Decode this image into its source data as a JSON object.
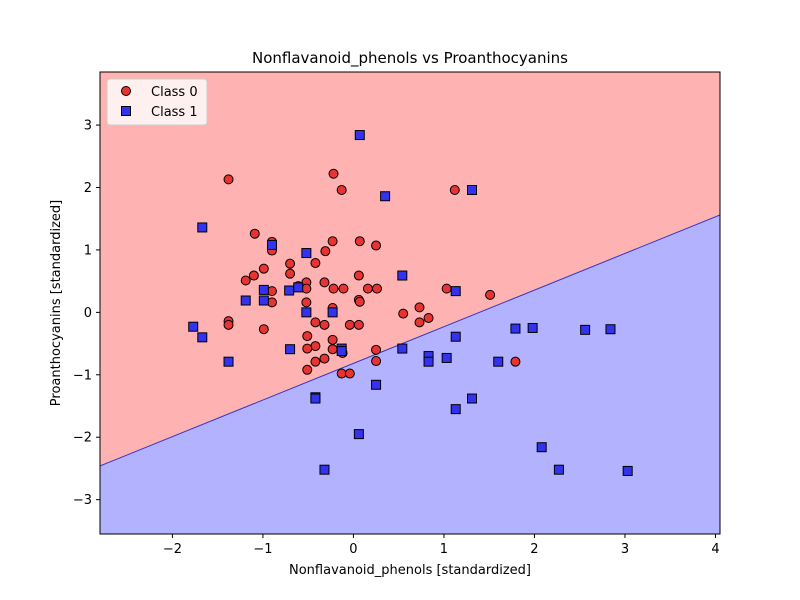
{
  "chart_data": {
    "type": "scatter",
    "title": "Nonflavanoid_phenols vs Proanthocyanins",
    "xlabel": "Nonflavanoid_phenols [standardized]",
    "ylabel": "Proanthocyanins [standardized]",
    "xlim": [
      -2.8,
      4.05
    ],
    "ylim": [
      -3.55,
      3.85
    ],
    "xticks": [
      -2,
      -1,
      0,
      1,
      2,
      3,
      4
    ],
    "yticks": [
      -3,
      -2,
      -1,
      0,
      1,
      2,
      3
    ],
    "grid": false,
    "legend_position": "top-left",
    "decision_boundary": {
      "points": [
        [
          -2.8,
          -2.46
        ],
        [
          4.05,
          1.56
        ]
      ],
      "region_above": {
        "class": "Class 0",
        "color": "#ffb2b2"
      },
      "region_below": {
        "class": "Class 1",
        "color": "#b2b2ff"
      },
      "line_color": "#3333cc"
    },
    "series": [
      {
        "name": "Class 0",
        "marker": "circle",
        "color": "#e83333",
        "edgecolor": "#000000",
        "points": [
          [
            -1.38,
            2.13
          ],
          [
            -0.22,
            2.22
          ],
          [
            -0.13,
            1.96
          ],
          [
            1.12,
            1.96
          ],
          [
            -1.09,
            1.26
          ],
          [
            -0.9,
            1.13
          ],
          [
            -0.23,
            1.14
          ],
          [
            0.07,
            1.14
          ],
          [
            0.25,
            1.07
          ],
          [
            -0.9,
            0.99
          ],
          [
            -0.31,
            0.98
          ],
          [
            -0.42,
            0.79
          ],
          [
            -0.7,
            0.78
          ],
          [
            -0.99,
            0.7
          ],
          [
            -0.7,
            0.62
          ],
          [
            -1.1,
            0.59
          ],
          [
            0.06,
            0.59
          ],
          [
            -1.19,
            0.51
          ],
          [
            -0.52,
            0.48
          ],
          [
            -0.32,
            0.48
          ],
          [
            -0.61,
            0.42
          ],
          [
            -0.52,
            0.38
          ],
          [
            -0.22,
            0.38
          ],
          [
            -0.11,
            0.38
          ],
          [
            0.16,
            0.38
          ],
          [
            0.26,
            0.38
          ],
          [
            1.03,
            0.38
          ],
          [
            -0.9,
            0.34
          ],
          [
            0.06,
            0.2
          ],
          [
            0.07,
            0.17
          ],
          [
            -0.52,
            0.16
          ],
          [
            -0.9,
            0.16
          ],
          [
            -0.23,
            0.07
          ],
          [
            0.73,
            0.08
          ],
          [
            1.51,
            0.28
          ],
          [
            0.55,
            -0.02
          ],
          [
            0.83,
            -0.09
          ],
          [
            0.73,
            -0.16
          ],
          [
            -1.38,
            -0.14
          ],
          [
            -0.42,
            -0.16
          ],
          [
            -1.38,
            -0.2
          ],
          [
            -0.32,
            -0.2
          ],
          [
            -0.04,
            -0.2
          ],
          [
            0.06,
            -0.2
          ],
          [
            -0.99,
            -0.27
          ],
          [
            -0.51,
            -0.38
          ],
          [
            -0.23,
            -0.44
          ],
          [
            -0.42,
            -0.54
          ],
          [
            -0.51,
            -0.58
          ],
          [
            -0.23,
            -0.59
          ],
          [
            0.25,
            -0.6
          ],
          [
            -0.12,
            -0.65
          ],
          [
            -0.32,
            -0.74
          ],
          [
            -0.42,
            -0.79
          ],
          [
            0.25,
            -0.78
          ],
          [
            1.79,
            -0.79
          ],
          [
            -0.51,
            -0.92
          ],
          [
            -0.13,
            -0.98
          ],
          [
            -0.04,
            -0.98
          ]
        ]
      },
      {
        "name": "Class 1",
        "marker": "square",
        "color": "#3333ee",
        "edgecolor": "#000000",
        "points": [
          [
            0.07,
            2.84
          ],
          [
            0.35,
            1.86
          ],
          [
            1.31,
            1.96
          ],
          [
            -1.67,
            1.36
          ],
          [
            -0.9,
            1.08
          ],
          [
            -0.52,
            0.95
          ],
          [
            0.54,
            0.59
          ],
          [
            -0.61,
            0.4
          ],
          [
            -0.71,
            0.35
          ],
          [
            -0.99,
            0.36
          ],
          [
            1.13,
            0.34
          ],
          [
            -1.19,
            0.19
          ],
          [
            -0.99,
            0.19
          ],
          [
            -0.52,
            0.0
          ],
          [
            -0.23,
            0.0
          ],
          [
            -1.77,
            -0.23
          ],
          [
            1.79,
            -0.26
          ],
          [
            1.98,
            -0.25
          ],
          [
            2.56,
            -0.28
          ],
          [
            2.84,
            -0.27
          ],
          [
            -1.67,
            -0.4
          ],
          [
            1.13,
            -0.39
          ],
          [
            -0.7,
            -0.59
          ],
          [
            -0.13,
            -0.58
          ],
          [
            -0.13,
            -0.62
          ],
          [
            0.54,
            -0.58
          ],
          [
            0.83,
            -0.7
          ],
          [
            1.03,
            -0.73
          ],
          [
            -1.38,
            -0.79
          ],
          [
            0.83,
            -0.79
          ],
          [
            1.6,
            -0.79
          ],
          [
            0.25,
            -1.16
          ],
          [
            -0.42,
            -1.36
          ],
          [
            -0.42,
            -1.38
          ],
          [
            1.31,
            -1.38
          ],
          [
            1.13,
            -1.55
          ],
          [
            0.06,
            -1.95
          ],
          [
            2.08,
            -2.16
          ],
          [
            -0.32,
            -2.52
          ],
          [
            2.27,
            -2.52
          ],
          [
            3.03,
            -2.54
          ]
        ]
      }
    ]
  }
}
